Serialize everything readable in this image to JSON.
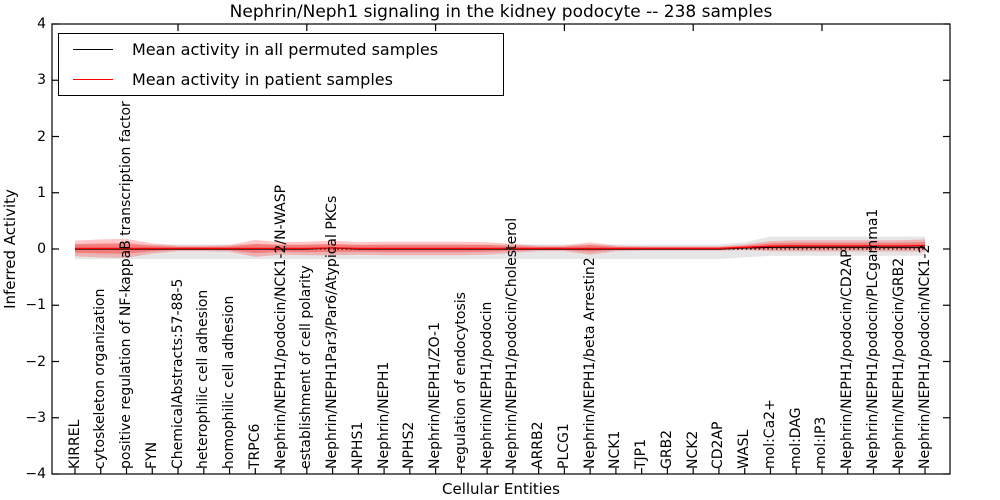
{
  "title": "Nephrin/Neph1 signaling in the kidney podocyte -- 238 samples",
  "chart_data": {
    "type": "line",
    "title": "Nephrin/Neph1 signaling in the kidney podocyte -- 238 samples",
    "xlabel": "Cellular Entities",
    "ylabel": "Inferred Activity",
    "ylim": [
      -4,
      4
    ],
    "grid": false,
    "legend_position": "upper left",
    "ytick_labels": [
      "4",
      "3",
      "2",
      "1",
      "0",
      "−1",
      "−2",
      "−3",
      "−4"
    ],
    "ytick_values": [
      4,
      3,
      2,
      1,
      0,
      -1,
      -2,
      -3,
      -4
    ],
    "top_ticks_at_category_index": [
      4,
      9,
      14,
      19,
      24,
      29
    ],
    "legend": [
      {
        "label": "Mean activity in all permuted samples",
        "color": "#000000"
      },
      {
        "label": "Mean activity in patient samples",
        "color": "#ff0000"
      }
    ],
    "categories": [
      "KIRREL",
      "cytoskeleton organization",
      "positive regulation of NF-kappaB transcription factor a",
      "FYN",
      "ChemicalAbstracts:57-88-5",
      "heterophilic cell adhesion",
      "homophilic cell adhesion",
      "TRPC6",
      "Nephrin/NEPH1/podocin/NCK1-2/N-WASP",
      "establishment of cell polarity",
      "Nephrin/NEPH1Par3/Par6/Atypical PKCs",
      "NPHS1",
      "Nephrin/NEPH1",
      "NPHS2",
      "Nephrin/NEPH1/ZO-1",
      "regulation of endocytosis",
      "Nephrin/NEPH1/podocin",
      "Nephrin/NEPH1/podocin/Cholesterol",
      "ARRB2",
      "PLCG1",
      "Nephrin/NEPH1/beta Arrestin2",
      "NCK1",
      "TJP1",
      "GRB2",
      "NCK2",
      "CD2AP",
      "WASL",
      "mol:Ca2+",
      "mol:DAG",
      "mol:IP3",
      "Nephrin/NEPH1/podocin/CD2AP",
      "Nephrin/NEPH1/podocin/PLCgamma1",
      "Nephrin/NEPH1/podocin/GRB2",
      "Nephrin/NEPH1/podocin/NCK1-2"
    ],
    "series": [
      {
        "name": "Mean activity in all permuted samples",
        "color": "#000000",
        "values": [
          0,
          0,
          0,
          0,
          0,
          0,
          0,
          0,
          0,
          0,
          0.02,
          0,
          0,
          0,
          0,
          0,
          0,
          0,
          0,
          0,
          0,
          0,
          0,
          0,
          0,
          0,
          0.02,
          0.03,
          0.03,
          0.03,
          0.03,
          0.03,
          0.03,
          0.03
        ],
        "band_upper": [
          0.08,
          0.08,
          0.08,
          0.08,
          0.08,
          0.08,
          0.08,
          0.08,
          0.08,
          0.08,
          0.08,
          0.08,
          0.08,
          0.08,
          0.08,
          0.08,
          0.08,
          0.08,
          0.08,
          0.08,
          0.08,
          0.08,
          0.08,
          0.08,
          0.08,
          0.08,
          0.12,
          0.22,
          0.22,
          0.22,
          0.22,
          0.22,
          0.22,
          0.22
        ],
        "band_lower": [
          -0.18,
          -0.18,
          -0.18,
          -0.18,
          -0.18,
          -0.18,
          -0.18,
          -0.18,
          -0.18,
          -0.18,
          -0.18,
          -0.18,
          -0.18,
          -0.18,
          -0.18,
          -0.18,
          -0.18,
          -0.18,
          -0.18,
          -0.18,
          -0.18,
          -0.18,
          -0.18,
          -0.18,
          -0.18,
          -0.18,
          -0.15,
          -0.12,
          -0.12,
          -0.12,
          -0.12,
          -0.12,
          -0.12,
          -0.12
        ]
      },
      {
        "name": "Mean activity in patient samples",
        "color": "#ff0000",
        "values": [
          0.01,
          0.01,
          0.01,
          0.01,
          0.01,
          0.01,
          0.01,
          0.01,
          0.01,
          0.01,
          0.02,
          0.01,
          0.01,
          0.01,
          0.01,
          0.01,
          0.01,
          0.01,
          0.01,
          0.01,
          0.01,
          0.01,
          0.01,
          0.01,
          0.01,
          0.01,
          0.03,
          0.05,
          0.055,
          0.055,
          0.055,
          0.055,
          0.055,
          0.06
        ],
        "band_halfwidth": [
          0.14,
          0.16,
          0.17,
          0.09,
          0.05,
          0.05,
          0.06,
          0.15,
          0.11,
          0.12,
          0.13,
          0.11,
          0.12,
          0.12,
          0.12,
          0.12,
          0.11,
          0.08,
          0.05,
          0.05,
          0.11,
          0.05,
          0.04,
          0.04,
          0.04,
          0.04,
          0.05,
          0.09,
          0.1,
          0.1,
          0.1,
          0.1,
          0.1,
          0.11
        ]
      }
    ],
    "zero_line": 0
  },
  "colors": {
    "background": "#ffffff",
    "axis": "#000000",
    "permuted_line": "#000000",
    "patient_line": "#ff0000",
    "patient_band": "#ff0000",
    "permuted_band": "#c8c8c8"
  }
}
